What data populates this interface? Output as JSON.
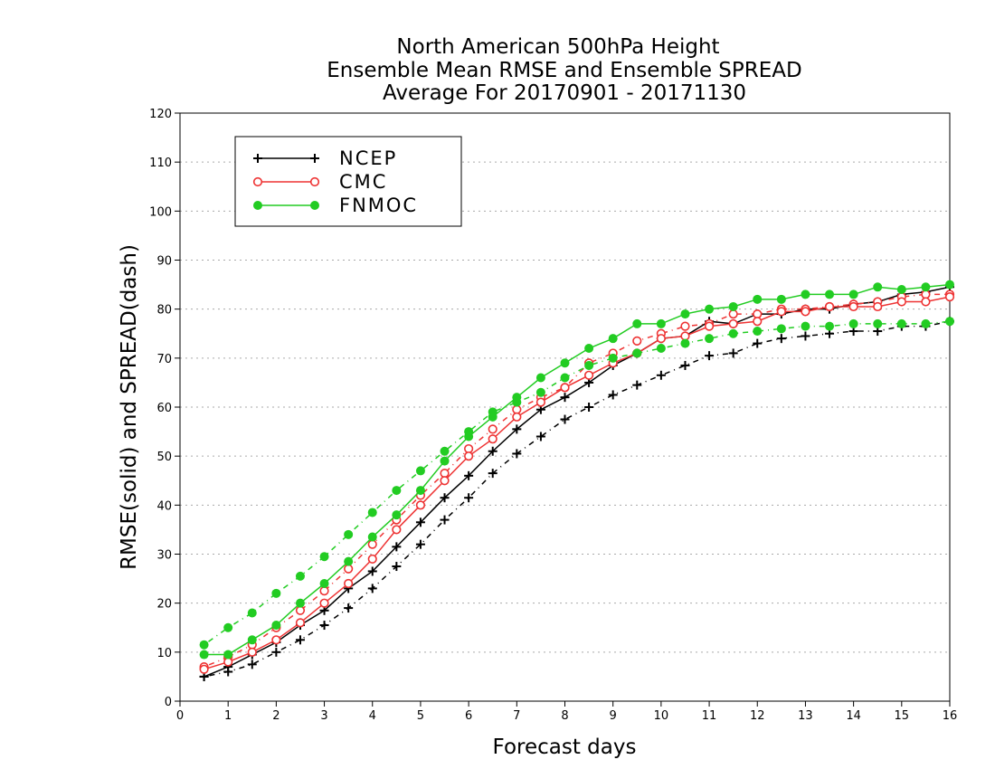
{
  "chart_data": {
    "type": "line",
    "title_lines": [
      "North American 500hPa Height",
      "Ensemble Mean RMSE and Ensemble SPREAD",
      "Average For 20170901 - 20171130"
    ],
    "xlabel": "Forecast days",
    "ylabel": "RMSE(solid) and SPREAD(dash)",
    "xlim": [
      0,
      16
    ],
    "ylim": [
      0,
      120
    ],
    "x_ticks": [
      "0",
      "1",
      "2",
      "3",
      "4",
      "5",
      "6",
      "7",
      "8",
      "9",
      "10",
      "11",
      "12",
      "13",
      "14",
      "15",
      "16"
    ],
    "y_ticks": [
      "0",
      "10",
      "20",
      "30",
      "40",
      "50",
      "60",
      "70",
      "80",
      "90",
      "100",
      "110",
      "120"
    ],
    "grid": "horizontal dotted",
    "legend_position": "top-left",
    "x": [
      0.5,
      1,
      1.5,
      2,
      2.5,
      3,
      3.5,
      4,
      4.5,
      5,
      5.5,
      6,
      6.5,
      7,
      7.5,
      8,
      8.5,
      9,
      9.5,
      10,
      10.5,
      11,
      11.5,
      12,
      12.5,
      13,
      13.5,
      14,
      14.5,
      15,
      15.5,
      16
    ],
    "series": [
      {
        "name": "NCEP",
        "color": "#000000",
        "marker": "plus",
        "rmse": [
          5,
          7,
          9.5,
          12,
          15.5,
          18.5,
          23,
          26.5,
          31.5,
          36.5,
          41.5,
          46,
          51,
          55.5,
          59.5,
          62,
          65,
          68.5,
          71,
          74,
          74.5,
          77.5,
          77,
          79,
          79,
          80,
          80,
          81,
          81.5,
          83,
          83.5,
          84.5
        ],
        "spread": [
          5,
          6,
          7.5,
          10,
          12.5,
          15.5,
          19,
          23,
          27.5,
          32,
          37,
          41.5,
          46.5,
          50.5,
          54,
          57.5,
          60,
          62.5,
          64.5,
          66.5,
          68.5,
          70.5,
          71,
          73,
          74,
          74.5,
          75,
          75.5,
          75.5,
          76.5,
          76.5,
          77.5
        ]
      },
      {
        "name": "CMC",
        "color": "#ee3333",
        "marker": "open-circle",
        "rmse": [
          6.5,
          8,
          10,
          12.5,
          16,
          20,
          24,
          29,
          35,
          40,
          45,
          50,
          53.5,
          58,
          61,
          64,
          66.5,
          69,
          71,
          74,
          74.5,
          76.5,
          77,
          77.5,
          79.5,
          79.5,
          80.5,
          80.5,
          80.5,
          81.5,
          81.5,
          82.5
        ],
        "spread": [
          7,
          9,
          11.5,
          15,
          18.5,
          22.5,
          27,
          32,
          37,
          42,
          46.5,
          51.5,
          55.5,
          59.5,
          62,
          64,
          69,
          71,
          73.5,
          75,
          76.5,
          77,
          79,
          79,
          80,
          80,
          80.5,
          81,
          81.5,
          82.5,
          83,
          83
        ]
      },
      {
        "name": "FNMOC",
        "color": "#22cc22",
        "marker": "filled-circle",
        "rmse": [
          9.5,
          9.5,
          12.5,
          15.5,
          20,
          24,
          28.5,
          33.5,
          38,
          43,
          49,
          54,
          58,
          62,
          66,
          69,
          72,
          74,
          77,
          77,
          79,
          80,
          80.5,
          82,
          82,
          83,
          83,
          83,
          84.5,
          84,
          84.5,
          85
        ],
        "spread": [
          11.5,
          15,
          18,
          22,
          25.5,
          29.5,
          34,
          38.5,
          43,
          47,
          51,
          55,
          59,
          61,
          63,
          66,
          68.5,
          70,
          71,
          72,
          73,
          74,
          75,
          75.5,
          76,
          76.5,
          76.5,
          77,
          77,
          77,
          77,
          77.5
        ]
      }
    ]
  }
}
